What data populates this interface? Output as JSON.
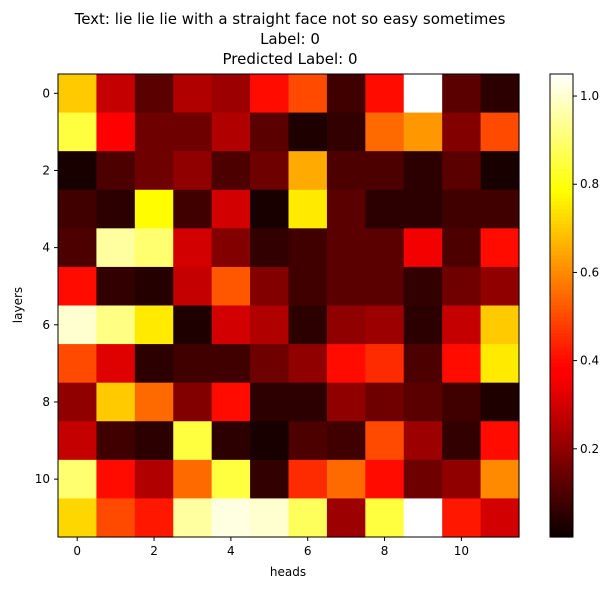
{
  "chart_data": {
    "type": "heatmap",
    "title_lines": [
      "Text: lie lie lie with a straight face not so easy sometimes",
      "Label: 0",
      "Predicted Label: 0"
    ],
    "xlabel": "heads",
    "ylabel": "layers",
    "x_ticks": [
      "0",
      "2",
      "4",
      "6",
      "8",
      "10"
    ],
    "y_ticks": [
      "0",
      "2",
      "4",
      "6",
      "8",
      "10"
    ],
    "colorbar_ticks": [
      "0.2",
      "0.4",
      "0.6",
      "0.8",
      "1.0"
    ],
    "colormap": "hot",
    "vmin": 0.0,
    "vmax": 1.05,
    "rows": 12,
    "cols": 12,
    "values": [
      [
        0.7,
        0.28,
        0.12,
        0.25,
        0.22,
        0.4,
        0.5,
        0.08,
        0.4,
        1.05,
        0.12,
        0.05
      ],
      [
        0.85,
        0.38,
        0.15,
        0.15,
        0.25,
        0.12,
        0.03,
        0.06,
        0.55,
        0.62,
        0.18,
        0.5
      ],
      [
        0.02,
        0.1,
        0.15,
        0.2,
        0.1,
        0.15,
        0.65,
        0.1,
        0.1,
        0.05,
        0.12,
        0.02
      ],
      [
        0.08,
        0.05,
        0.78,
        0.08,
        0.3,
        0.02,
        0.75,
        0.12,
        0.05,
        0.05,
        0.08,
        0.08
      ],
      [
        0.1,
        0.95,
        0.9,
        0.3,
        0.18,
        0.06,
        0.08,
        0.12,
        0.12,
        0.35,
        0.1,
        0.4
      ],
      [
        0.4,
        0.06,
        0.04,
        0.28,
        0.52,
        0.18,
        0.08,
        0.12,
        0.12,
        0.06,
        0.15,
        0.2
      ],
      [
        1.0,
        0.92,
        0.75,
        0.03,
        0.3,
        0.25,
        0.05,
        0.2,
        0.22,
        0.05,
        0.28,
        0.7
      ],
      [
        0.5,
        0.32,
        0.05,
        0.08,
        0.08,
        0.15,
        0.2,
        0.4,
        0.45,
        0.1,
        0.4,
        0.75
      ],
      [
        0.2,
        0.7,
        0.55,
        0.18,
        0.4,
        0.05,
        0.05,
        0.2,
        0.15,
        0.12,
        0.08,
        0.03
      ],
      [
        0.28,
        0.08,
        0.05,
        0.85,
        0.05,
        0.02,
        0.1,
        0.08,
        0.5,
        0.22,
        0.06,
        0.4
      ],
      [
        0.9,
        0.4,
        0.25,
        0.55,
        0.85,
        0.06,
        0.45,
        0.55,
        0.4,
        0.15,
        0.2,
        0.6
      ],
      [
        0.72,
        0.5,
        0.42,
        0.95,
        1.02,
        1.0,
        0.88,
        0.22,
        0.85,
        1.05,
        0.42,
        0.3
      ]
    ]
  }
}
